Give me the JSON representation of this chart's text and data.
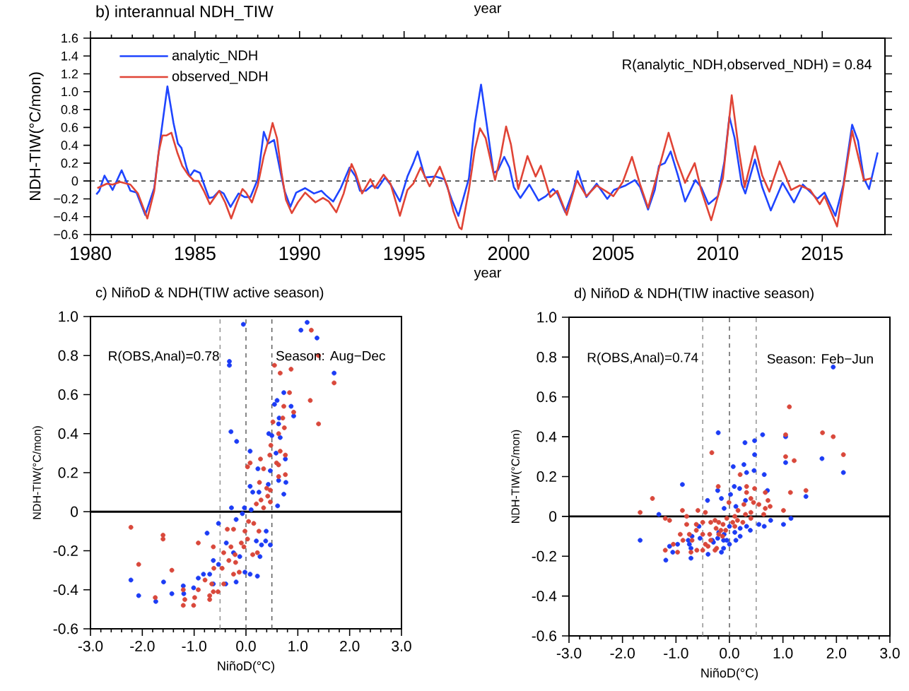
{
  "chart_data": [
    {
      "type": "line",
      "title": "b) interannual NDH_TIW",
      "xlabel": "year",
      "ylabel": "NDH-TIW(°C/mon)",
      "annotations": [
        "R(analytic_NDH,observed_NDH) = 0.84",
        "year"
      ],
      "xlim": [
        1980,
        2018
      ],
      "xticks": [
        1980,
        1985,
        1990,
        1995,
        2000,
        2005,
        2010,
        2015
      ],
      "ylim": [
        -0.6,
        1.6
      ],
      "yticks": [
        {
          "value": -0.6,
          "label": "−0.6"
        },
        {
          "value": -0.4,
          "label": "−0.4"
        },
        {
          "value": -0.2,
          "label": "−0.2"
        },
        {
          "value": 0,
          "label": "0"
        },
        {
          "value": 0.2,
          "label": "0.2"
        },
        {
          "value": 0.4,
          "label": "0.4"
        },
        {
          "value": 0.6,
          "label": "0.6"
        },
        {
          "value": 0.8,
          "label": "0.8"
        },
        {
          "value": 1.0,
          "label": "1.0"
        },
        {
          "value": 1.2,
          "label": "1.2"
        },
        {
          "value": 1.4,
          "label": "1.4"
        },
        {
          "value": 1.6,
          "label": "1.6"
        }
      ],
      "legend": "top left",
      "ref_lines": [
        {
          "axis": "y",
          "value": 0,
          "color": "#000000",
          "line_style": "dashed"
        }
      ],
      "series": [
        {
          "name": "analytic_NDH",
          "color": "#1f45ff",
          "x": [
            1980.28,
            1980.42,
            1980.67,
            1981.06,
            1981.49,
            1981.91,
            1982.2,
            1982.62,
            1983.05,
            1983.33,
            1983.68,
            1983.97,
            1984.18,
            1984.35,
            1984.6,
            1984.75,
            1984.96,
            1985.24,
            1985.45,
            1985.67,
            1985.88,
            1986.16,
            1986.37,
            1986.7,
            1987.08,
            1987.37,
            1987.65,
            1988.0,
            1988.29,
            1988.5,
            1988.78,
            1989.07,
            1989.28,
            1989.56,
            1989.84,
            1990.27,
            1990.69,
            1991.05,
            1991.26,
            1991.61,
            1991.97,
            1992.39,
            1992.68,
            1992.89,
            1993.17,
            1993.46,
            1993.74,
            1994.09,
            1994.38,
            1994.8,
            1995.16,
            1995.44,
            1995.65,
            1996.0,
            1996.5,
            1996.93,
            1997.28,
            1997.6,
            1998.1,
            1998.38,
            1998.68,
            1998.93,
            1999.28,
            1999.49,
            1999.79,
            2000.04,
            2000.25,
            2000.56,
            2000.99,
            2001.43,
            2001.78,
            2002.13,
            2002.33,
            2002.71,
            2003.1,
            2003.31,
            2003.72,
            2004.21,
            2004.72,
            2005.04,
            2005.6,
            2006.04,
            2006.29,
            2006.67,
            2006.99,
            2007.19,
            2007.47,
            2007.75,
            2008.1,
            2008.44,
            2008.93,
            2009.21,
            2009.56,
            2010.01,
            2010.32,
            2010.56,
            2010.81,
            2011.15,
            2011.32,
            2011.78,
            2012.13,
            2012.54,
            2013.1,
            2013.65,
            2014.07,
            2014.63,
            2014.76,
            2015.11,
            2015.63,
            2016.01,
            2016.43,
            2016.71,
            2016.99,
            2017.24,
            2017.65
          ],
          "values": [
            -0.15,
            -0.11,
            0.06,
            -0.1,
            0.12,
            -0.11,
            -0.13,
            -0.38,
            -0.08,
            0.45,
            1.06,
            0.65,
            0.42,
            0.37,
            0.15,
            0.05,
            0.12,
            0.09,
            -0.05,
            -0.19,
            -0.18,
            -0.11,
            -0.14,
            -0.29,
            -0.14,
            -0.18,
            -0.18,
            0.02,
            0.55,
            0.42,
            0.46,
            0.12,
            -0.11,
            -0.29,
            -0.13,
            -0.08,
            -0.14,
            -0.11,
            -0.16,
            -0.23,
            -0.08,
            0.15,
            0.05,
            -0.11,
            -0.11,
            -0.05,
            -0.08,
            0.04,
            -0.05,
            -0.23,
            0.05,
            0.2,
            0.33,
            0.04,
            0.05,
            0.02,
            -0.21,
            -0.39,
            0.03,
            0.64,
            1.08,
            0.67,
            0.09,
            0.12,
            0.27,
            0.15,
            -0.07,
            -0.19,
            -0.04,
            -0.22,
            -0.17,
            -0.09,
            -0.14,
            -0.35,
            -0.1,
            0.11,
            -0.18,
            -0.03,
            -0.2,
            -0.1,
            -0.05,
            0.01,
            -0.07,
            -0.32,
            -0.1,
            0.17,
            0.2,
            0.33,
            0.06,
            -0.23,
            0.01,
            -0.07,
            -0.26,
            -0.17,
            0.22,
            0.72,
            0.48,
            -0.04,
            -0.14,
            0.24,
            -0.07,
            -0.33,
            -0.02,
            -0.24,
            -0.04,
            -0.17,
            -0.2,
            -0.13,
            -0.39,
            -0.04,
            0.63,
            0.45,
            0.03,
            -0.09,
            0.32
          ]
        },
        {
          "name": "observed_NDH",
          "color": "#e04436",
          "x": [
            1980.33,
            1980.78,
            1981.06,
            1981.42,
            1981.91,
            1982.27,
            1982.72,
            1983.05,
            1983.26,
            1983.44,
            1983.64,
            1983.87,
            1984.15,
            1984.39,
            1984.67,
            1984.96,
            1985.17,
            1985.42,
            1985.71,
            1986.16,
            1986.44,
            1986.73,
            1987.01,
            1987.27,
            1987.44,
            1987.72,
            1988.0,
            1988.29,
            1988.54,
            1988.71,
            1988.92,
            1989.14,
            1989.35,
            1989.63,
            1989.92,
            1990.27,
            1990.76,
            1991.12,
            1991.4,
            1991.76,
            1992.11,
            1992.49,
            1992.68,
            1992.99,
            1993.39,
            1993.6,
            1994.02,
            1994.35,
            1994.8,
            1995.16,
            1995.44,
            1995.79,
            1996.22,
            1996.71,
            1997.07,
            1997.36,
            1997.64,
            1997.75,
            1998.1,
            1998.38,
            1998.63,
            1998.9,
            1999.35,
            1999.62,
            1999.88,
            2000.11,
            2000.46,
            2000.9,
            2001.29,
            2001.54,
            2001.99,
            2002.33,
            2002.78,
            2003.26,
            2003.72,
            2004.21,
            2004.69,
            2005.01,
            2005.46,
            2005.9,
            2006.29,
            2006.67,
            2007.13,
            2007.65,
            2008.03,
            2008.44,
            2008.9,
            2009.21,
            2009.69,
            2010.25,
            2010.67,
            2011.01,
            2011.29,
            2011.78,
            2012.13,
            2012.47,
            2012.96,
            2013.51,
            2013.93,
            2014.42,
            2014.88,
            2015.11,
            2015.71,
            2016.01,
            2016.43,
            2016.99,
            2017.35
          ],
          "values": [
            -0.08,
            -0.03,
            -0.04,
            -0.01,
            -0.04,
            -0.14,
            -0.42,
            -0.11,
            0.32,
            0.51,
            0.51,
            0.54,
            0.32,
            0.17,
            0.07,
            0.0,
            0.0,
            -0.11,
            -0.26,
            -0.11,
            -0.24,
            -0.42,
            -0.24,
            -0.09,
            -0.13,
            -0.24,
            -0.05,
            0.28,
            0.48,
            0.65,
            0.48,
            0.09,
            -0.21,
            -0.36,
            -0.24,
            -0.13,
            -0.24,
            -0.19,
            -0.23,
            -0.35,
            -0.14,
            0.19,
            0.09,
            -0.14,
            0.02,
            -0.08,
            0.07,
            -0.03,
            -0.39,
            -0.1,
            -0.03,
            0.15,
            -0.06,
            0.16,
            -0.06,
            -0.34,
            -0.52,
            -0.54,
            -0.1,
            0.35,
            0.59,
            0.48,
            0.01,
            0.28,
            0.61,
            0.41,
            -0.09,
            0.28,
            0.05,
            0.17,
            -0.18,
            -0.11,
            -0.38,
            0.01,
            -0.17,
            -0.05,
            -0.12,
            -0.17,
            -0.01,
            0.27,
            -0.04,
            -0.3,
            0.09,
            0.54,
            0.24,
            -0.02,
            0.2,
            -0.1,
            -0.44,
            0.03,
            0.96,
            0.35,
            -0.07,
            0.39,
            0.06,
            -0.12,
            0.22,
            -0.1,
            -0.05,
            -0.1,
            -0.26,
            -0.17,
            -0.51,
            -0.07,
            0.56,
            0.01,
            0.03
          ]
        }
      ]
    },
    {
      "type": "scatter",
      "title": "c) NiñoD & NDH(TIW active season)",
      "xlabel": "NiñoD(°C)",
      "ylabel": "NDH-TIW(°C/mon)",
      "annotations": [
        "R(OBS,Anal)=0.78",
        "Season: Aug−Dec"
      ],
      "marker": "circle",
      "xlim": [
        -3,
        3
      ],
      "xticks": [
        {
          "value": -3,
          "label": "-3.0"
        },
        {
          "value": -2,
          "label": "-2.0"
        },
        {
          "value": -1,
          "label": "-1.0"
        },
        {
          "value": 0,
          "label": "0.0"
        },
        {
          "value": 1,
          "label": "1.0"
        },
        {
          "value": 2,
          "label": "2.0"
        },
        {
          "value": 3,
          "label": "3.0"
        }
      ],
      "ylim": [
        -0.6,
        1.0
      ],
      "yticks": [
        {
          "value": -0.6,
          "label": "-0.6"
        },
        {
          "value": -0.4,
          "label": "-0.4"
        },
        {
          "value": -0.2,
          "label": "-0.2"
        },
        {
          "value": 0,
          "label": "0"
        },
        {
          "value": 0.2,
          "label": "0.2"
        },
        {
          "value": 0.4,
          "label": "0.4"
        },
        {
          "value": 0.6,
          "label": "0.6"
        },
        {
          "value": 0.8,
          "label": "0.8"
        },
        {
          "value": 1.0,
          "label": "1.0"
        }
      ],
      "ref_lines": [
        {
          "axis": "x",
          "value": -0.5,
          "color": "#8c8c8c",
          "line_style": "dashed"
        },
        {
          "axis": "x",
          "value": 0,
          "color": "#555555",
          "line_style": "dashed"
        },
        {
          "axis": "x",
          "value": 0.5,
          "color": "#555555",
          "line_style": "dashed"
        },
        {
          "axis": "y",
          "value": 0,
          "color": "#000000",
          "line_style": "solid"
        }
      ],
      "series": [
        {
          "color": "#1c3cf5",
          "x": [
            -0.05,
            1.18,
            1.06,
            1.37,
            -0.32,
            -0.32,
            1.7,
            0.73,
            0.6,
            0.55,
            0.87,
            0.92,
            0.64,
            0.63,
            -0.29,
            0.44,
            0.5,
            0.66,
            -0.18,
            0.08,
            0.76,
            0.58,
            0.23,
            0.47,
            0.63,
            0.77,
            0.08,
            0.13,
            0.25,
            0.73,
            0.43,
            0.61,
            -0.28,
            -0.03,
            0.1,
            -0.19,
            -0.07,
            -0.53,
            -0.75,
            0.39,
            0.38,
            0.47,
            0.3,
            0.2,
            -0.38,
            -0.24,
            0.27,
            -0.12,
            -0.63,
            -0.53,
            -0.82,
            -0.7,
            -0.92,
            -0.63,
            -0.39,
            -0.02,
            0.08,
            0.22,
            -0.19,
            -2.22,
            -1.59,
            -1.21,
            -1.01,
            -1.43,
            -1.2,
            -2.07,
            -1.74
          ],
          "values": [
            0.96,
            0.97,
            0.93,
            0.89,
            0.77,
            0.75,
            0.71,
            0.61,
            0.57,
            0.55,
            0.54,
            0.49,
            0.48,
            0.45,
            0.41,
            0.4,
            0.39,
            0.38,
            0.36,
            0.31,
            0.27,
            0.3,
            0.22,
            0.21,
            0.16,
            0.15,
            0.13,
            0.1,
            0.1,
            0.09,
            0.14,
            0.03,
            0.02,
            0.02,
            0.01,
            -0.04,
            -0.01,
            -0.06,
            -0.11,
            -0.1,
            -0.15,
            -0.17,
            -0.17,
            -0.15,
            -0.16,
            -0.21,
            -0.23,
            -0.23,
            -0.25,
            -0.27,
            -0.32,
            -0.32,
            -0.34,
            -0.37,
            -0.37,
            -0.31,
            -0.32,
            -0.33,
            -0.36,
            -0.35,
            -0.36,
            -0.38,
            -0.39,
            -0.42,
            -0.42,
            -0.43,
            -0.46
          ]
        },
        {
          "color": "#d9483b",
          "x": [
            1.26,
            1.4,
            0.55,
            0.66,
            0.87,
            1.7,
            0.84,
            1.24,
            0.73,
            0.92,
            0.71,
            0.74,
            0.52,
            1.4,
            0.63,
            0.48,
            0.66,
            0.76,
            0.46,
            0.28,
            0.08,
            0.03,
            0.34,
            0.59,
            0.63,
            0.76,
            0.63,
            0.26,
            0.4,
            0.47,
            0.42,
            0.29,
            0.47,
            0.2,
            0.34,
            0.05,
            0.15,
            -0.02,
            -0.24,
            -0.36,
            0.25,
            0.03,
            -0.09,
            0.13,
            0.22,
            -0.04,
            -0.29,
            -0.21,
            -0.43,
            -0.63,
            -0.92,
            -0.33,
            -0.2,
            -0.46,
            -0.62,
            -0.24,
            -0.43,
            -0.79,
            -0.66,
            -0.92,
            -0.7,
            -0.63,
            -0.54,
            -0.7,
            -0.99,
            -1.01,
            -1.21,
            -1.18,
            -1.21,
            -1.43,
            -1.6,
            -1.6,
            -2.22,
            -2.07,
            -1.75,
            -0.13
          ],
          "values": [
            0.93,
            0.8,
            0.75,
            0.71,
            0.73,
            0.66,
            0.61,
            0.57,
            0.54,
            0.51,
            0.48,
            0.43,
            0.46,
            0.45,
            0.4,
            0.34,
            0.31,
            0.29,
            0.29,
            0.27,
            0.25,
            0.23,
            0.22,
            0.25,
            0.24,
            0.19,
            0.18,
            0.15,
            0.12,
            0.11,
            0.08,
            0.06,
            0.05,
            0.04,
            0.02,
            -0.05,
            -0.06,
            -0.1,
            -0.09,
            -0.09,
            -0.1,
            -0.14,
            -0.16,
            -0.22,
            -0.21,
            -0.18,
            -0.18,
            -0.22,
            -0.21,
            -0.18,
            -0.16,
            -0.25,
            -0.26,
            -0.29,
            -0.29,
            -0.32,
            -0.37,
            -0.35,
            -0.37,
            -0.4,
            -0.43,
            -0.41,
            -0.41,
            -0.45,
            -0.44,
            -0.48,
            -0.48,
            -0.45,
            -0.4,
            -0.3,
            -0.12,
            -0.14,
            -0.08,
            -0.27,
            -0.44,
            -0.31
          ]
        }
      ]
    },
    {
      "type": "scatter",
      "title": "d) NiñoD & NDH(TIW inactive season)",
      "xlabel": "NiñoD(°C)",
      "ylabel": "NDH-TIW(°C/mon)",
      "annotations": [
        "R(OBS,Anal)=0.74",
        "Season: Feb−Jun"
      ],
      "marker": "circle",
      "xlim": [
        -3,
        3
      ],
      "xticks": [
        {
          "value": -3,
          "label": "-3.0"
        },
        {
          "value": -2,
          "label": "-2.0"
        },
        {
          "value": -1,
          "label": "-1.0"
        },
        {
          "value": 0,
          "label": "0.0"
        },
        {
          "value": 1,
          "label": "1.0"
        },
        {
          "value": 2,
          "label": "2.0"
        },
        {
          "value": 3,
          "label": "3.0"
        }
      ],
      "ylim": [
        -0.6,
        1.0
      ],
      "yticks": [
        {
          "value": -0.6,
          "label": "-0.6"
        },
        {
          "value": -0.4,
          "label": "-0.4"
        },
        {
          "value": -0.2,
          "label": "-0.2"
        },
        {
          "value": 0,
          "label": "0"
        },
        {
          "value": 0.2,
          "label": "0.2"
        },
        {
          "value": 0.4,
          "label": "0.4"
        },
        {
          "value": 0.6,
          "label": "0.6"
        },
        {
          "value": 0.8,
          "label": "0.8"
        },
        {
          "value": 1.0,
          "label": "1.0"
        }
      ],
      "ref_lines": [
        {
          "axis": "x",
          "value": -0.5,
          "color": "#8c8c8c",
          "line_style": "dashed"
        },
        {
          "axis": "x",
          "value": 0,
          "color": "#555555",
          "line_style": "dashed"
        },
        {
          "axis": "x",
          "value": 0.5,
          "color": "#8c8c8c",
          "line_style": "dashed"
        },
        {
          "axis": "y",
          "value": 0,
          "color": "#000000",
          "line_style": "solid"
        }
      ],
      "series": [
        {
          "color": "#1c3cf5",
          "x": [
            1.94,
            -0.21,
            0.62,
            0.47,
            0.29,
            1.05,
            0.47,
            1.05,
            1.73,
            0.07,
            0.27,
            0.46,
            0.32,
            0.65,
            2.13,
            -0.88,
            0.09,
            0.19,
            0.71,
            -0.22,
            0.02,
            -0.41,
            1.43,
            -0.15,
            0.3,
            -0.1,
            0.12,
            -1.32,
            1.15,
            0.77,
            0.55,
            0.65,
            1.01,
            0.32,
            0.39,
            0.2,
            0.0,
            0.1,
            0.2,
            -0.57,
            -0.2,
            -0.1,
            -0.05,
            0.12,
            -0.22,
            -0.32,
            -0.3,
            -0.11,
            -0.55,
            -0.7,
            -0.77,
            -0.75,
            -0.97,
            0.0,
            -1.67,
            -1.12,
            -1.06,
            -0.72,
            -0.4,
            -0.15,
            -0.11,
            -1.19,
            -0.72
          ],
          "values": [
            0.75,
            0.42,
            0.41,
            0.38,
            0.37,
            0.4,
            0.31,
            0.27,
            0.29,
            0.25,
            0.26,
            0.23,
            0.22,
            0.21,
            0.22,
            0.16,
            0.15,
            0.14,
            0.13,
            0.13,
            0.11,
            0.08,
            0.1,
            0.09,
            0.08,
            0.04,
            0.05,
            0.01,
            -0.01,
            -0.02,
            -0.04,
            -0.05,
            -0.04,
            -0.05,
            -0.07,
            -0.06,
            -0.05,
            -0.08,
            -0.1,
            -0.05,
            -0.08,
            -0.09,
            -0.12,
            -0.12,
            -0.11,
            -0.12,
            -0.13,
            -0.12,
            -0.11,
            -0.1,
            -0.12,
            -0.14,
            -0.14,
            -0.14,
            -0.12,
            -0.15,
            -0.18,
            -0.16,
            -0.19,
            -0.18,
            -0.16,
            -0.22,
            -0.21
          ]
        },
        {
          "color": "#d9483b",
          "x": [
            1.12,
            1.74,
            1.94,
            1.05,
            -0.33,
            2.13,
            1.05,
            1.21,
            0.2,
            1.43,
            1.14,
            -0.21,
            0.32,
            0.47,
            0.32,
            0.67,
            -1.44,
            0.4,
            -0.01,
            0.45,
            0.72,
            0.55,
            0.27,
            0.76,
            0.67,
            0.16,
            1.01,
            -0.88,
            -0.59,
            -0.45,
            -1.67,
            0.4,
            0.3,
            0.64,
            0.1,
            -1.2,
            -1.12,
            -0.8,
            -0.05,
            0.15,
            0.25,
            0.06,
            0.4,
            -0.27,
            -0.35,
            -0.2,
            -0.5,
            -0.62,
            -0.12,
            0.1,
            -0.8,
            -0.25,
            -0.16,
            -0.07,
            -0.62,
            -0.5,
            -0.37,
            -0.2,
            -0.92,
            -0.75,
            -0.13,
            -0.7,
            -0.35,
            -0.45,
            -0.87,
            -0.4,
            -0.24,
            -0.27,
            -0.61,
            -0.5,
            -0.72,
            -1.2,
            -1.05,
            -0.97
          ],
          "values": [
            0.55,
            0.42,
            0.4,
            0.41,
            0.32,
            0.31,
            0.3,
            0.28,
            0.21,
            0.13,
            0.12,
            0.15,
            0.15,
            0.14,
            0.12,
            0.12,
            0.09,
            0.09,
            0.07,
            0.07,
            0.08,
            0.06,
            0.06,
            0.05,
            0.04,
            0.03,
            0.03,
            0.03,
            0.03,
            0.02,
            0.02,
            0.02,
            0.01,
            0.01,
            0.0,
            -0.01,
            -0.02,
            0.0,
            -0.01,
            -0.02,
            -0.03,
            -0.03,
            -0.01,
            -0.02,
            -0.03,
            -0.03,
            -0.03,
            -0.04,
            -0.04,
            -0.05,
            -0.04,
            -0.06,
            -0.07,
            -0.07,
            -0.07,
            -0.09,
            -0.09,
            -0.09,
            -0.09,
            -0.09,
            -0.1,
            -0.12,
            -0.12,
            -0.14,
            -0.12,
            -0.15,
            -0.16,
            -0.17,
            -0.17,
            -0.17,
            -0.18,
            -0.17,
            -0.14,
            -0.18
          ]
        }
      ]
    }
  ]
}
